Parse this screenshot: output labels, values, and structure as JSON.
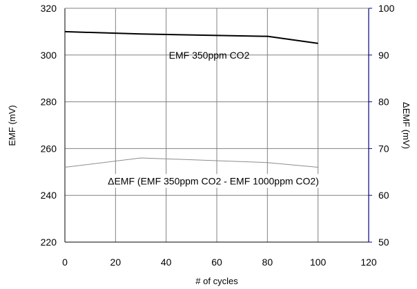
{
  "chart_data": {
    "type": "line",
    "xlabel": "# of cycles",
    "ylabel_left": "EMF (mV)",
    "ylabel_right": "ΔEMF (mV)",
    "xlim": [
      0,
      120
    ],
    "ylim_left": [
      220,
      320
    ],
    "ylim_right": [
      50,
      100
    ],
    "x_ticks": [
      "0",
      "20",
      "40",
      "60",
      "80",
      "100",
      "120"
    ],
    "y_ticks_left": [
      "220",
      "240",
      "260",
      "280",
      "300",
      "320"
    ],
    "y_ticks_right": [
      "50",
      "60",
      "70",
      "80",
      "90",
      "100"
    ],
    "grid": true,
    "colors": {
      "axis_right": "#000080",
      "grid": "#808080",
      "series_primary": "#000000",
      "series_secondary": "#8c8c8c"
    },
    "series": [
      {
        "name": "EMF 350ppm CO2",
        "axis": "left",
        "x": [
          0,
          30,
          80,
          100
        ],
        "y": [
          310,
          309,
          308,
          305
        ]
      },
      {
        "name": "ΔEMF (EMF 350ppm CO2 - EMF 1000ppm CO2)",
        "axis": "right",
        "x": [
          0,
          30,
          80,
          100
        ],
        "y": [
          66,
          68,
          67,
          66
        ]
      }
    ]
  }
}
